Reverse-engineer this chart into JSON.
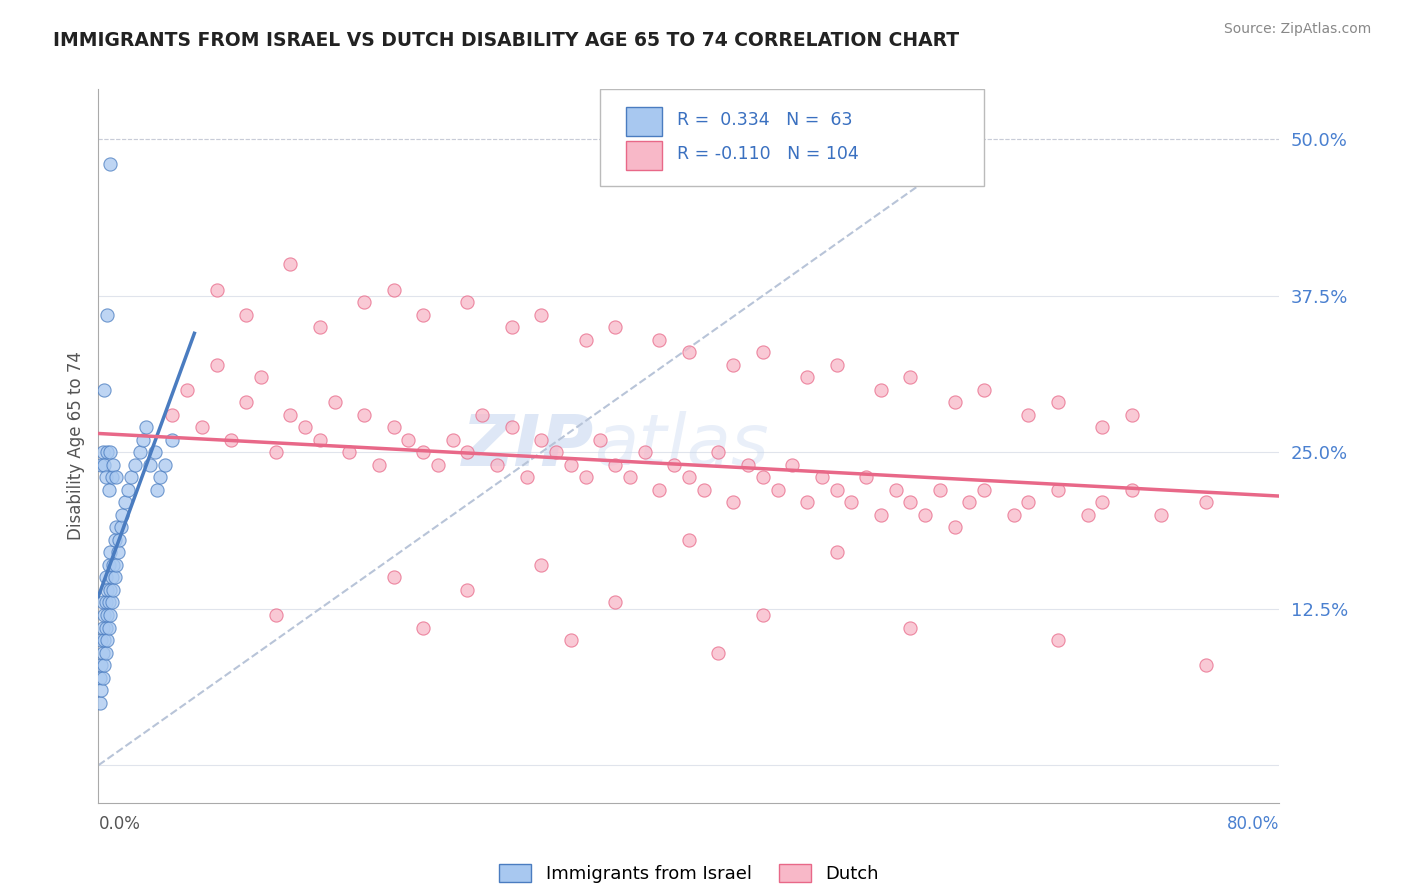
{
  "title": "IMMIGRANTS FROM ISRAEL VS DUTCH DISABILITY AGE 65 TO 74 CORRELATION CHART",
  "source": "Source: ZipAtlas.com",
  "ylabel": "Disability Age 65 to 74",
  "yticks": [
    0.0,
    0.125,
    0.25,
    0.375,
    0.5
  ],
  "ytick_labels": [
    "",
    "12.5%",
    "25.0%",
    "37.5%",
    "50.0%"
  ],
  "xmin": 0.0,
  "xmax": 0.8,
  "ymin": -0.03,
  "ymax": 0.54,
  "israel_R": 0.334,
  "israel_N": 63,
  "dutch_R": -0.11,
  "dutch_N": 104,
  "israel_color": "#a8c8f0",
  "dutch_color": "#f8b8c8",
  "israel_line_color": "#4a7cc0",
  "dutch_line_color": "#e86888",
  "trendline_dashed_color": "#b8c4d8",
  "watermark_color": "#c8d8f0",
  "background_color": "#ffffff",
  "title_color": "#222222",
  "grid_color": "#e0e4ec",
  "israel_scatter_x": [
    0.001,
    0.001,
    0.002,
    0.002,
    0.002,
    0.003,
    0.003,
    0.003,
    0.003,
    0.004,
    0.004,
    0.004,
    0.005,
    0.005,
    0.005,
    0.005,
    0.006,
    0.006,
    0.006,
    0.007,
    0.007,
    0.007,
    0.008,
    0.008,
    0.008,
    0.009,
    0.009,
    0.01,
    0.01,
    0.011,
    0.011,
    0.012,
    0.012,
    0.013,
    0.014,
    0.015,
    0.016,
    0.018,
    0.02,
    0.022,
    0.025,
    0.028,
    0.03,
    0.032,
    0.035,
    0.038,
    0.04,
    0.042,
    0.045,
    0.05,
    0.002,
    0.003,
    0.004,
    0.005,
    0.006,
    0.007,
    0.008,
    0.009,
    0.01,
    0.012,
    0.008,
    0.006,
    0.004
  ],
  "israel_scatter_y": [
    0.05,
    0.07,
    0.06,
    0.08,
    0.1,
    0.07,
    0.09,
    0.11,
    0.13,
    0.08,
    0.1,
    0.12,
    0.09,
    0.11,
    0.13,
    0.15,
    0.1,
    0.12,
    0.14,
    0.11,
    0.13,
    0.16,
    0.12,
    0.14,
    0.17,
    0.13,
    0.15,
    0.14,
    0.16,
    0.15,
    0.18,
    0.16,
    0.19,
    0.17,
    0.18,
    0.19,
    0.2,
    0.21,
    0.22,
    0.23,
    0.24,
    0.25,
    0.26,
    0.27,
    0.24,
    0.25,
    0.22,
    0.23,
    0.24,
    0.26,
    0.24,
    0.25,
    0.24,
    0.23,
    0.25,
    0.22,
    0.25,
    0.23,
    0.24,
    0.23,
    0.48,
    0.36,
    0.3
  ],
  "dutch_scatter_x": [
    0.05,
    0.06,
    0.07,
    0.08,
    0.09,
    0.1,
    0.11,
    0.12,
    0.13,
    0.14,
    0.15,
    0.16,
    0.17,
    0.18,
    0.19,
    0.2,
    0.21,
    0.22,
    0.23,
    0.24,
    0.25,
    0.26,
    0.27,
    0.28,
    0.29,
    0.3,
    0.31,
    0.32,
    0.33,
    0.34,
    0.35,
    0.36,
    0.37,
    0.38,
    0.39,
    0.4,
    0.41,
    0.42,
    0.43,
    0.44,
    0.45,
    0.46,
    0.47,
    0.48,
    0.49,
    0.5,
    0.51,
    0.52,
    0.53,
    0.54,
    0.55,
    0.56,
    0.57,
    0.58,
    0.59,
    0.6,
    0.62,
    0.63,
    0.65,
    0.67,
    0.68,
    0.7,
    0.72,
    0.75,
    0.08,
    0.1,
    0.13,
    0.15,
    0.18,
    0.2,
    0.22,
    0.25,
    0.28,
    0.3,
    0.33,
    0.35,
    0.38,
    0.4,
    0.43,
    0.45,
    0.48,
    0.5,
    0.53,
    0.55,
    0.58,
    0.6,
    0.63,
    0.65,
    0.68,
    0.7,
    0.4,
    0.5,
    0.3,
    0.2,
    0.25,
    0.35,
    0.45,
    0.55,
    0.65,
    0.75,
    0.12,
    0.22,
    0.32,
    0.42
  ],
  "dutch_scatter_y": [
    0.28,
    0.3,
    0.27,
    0.32,
    0.26,
    0.29,
    0.31,
    0.25,
    0.28,
    0.27,
    0.26,
    0.29,
    0.25,
    0.28,
    0.24,
    0.27,
    0.26,
    0.25,
    0.24,
    0.26,
    0.25,
    0.28,
    0.24,
    0.27,
    0.23,
    0.26,
    0.25,
    0.24,
    0.23,
    0.26,
    0.24,
    0.23,
    0.25,
    0.22,
    0.24,
    0.23,
    0.22,
    0.25,
    0.21,
    0.24,
    0.23,
    0.22,
    0.24,
    0.21,
    0.23,
    0.22,
    0.21,
    0.23,
    0.2,
    0.22,
    0.21,
    0.2,
    0.22,
    0.19,
    0.21,
    0.22,
    0.2,
    0.21,
    0.22,
    0.2,
    0.21,
    0.22,
    0.2,
    0.21,
    0.38,
    0.36,
    0.4,
    0.35,
    0.37,
    0.38,
    0.36,
    0.37,
    0.35,
    0.36,
    0.34,
    0.35,
    0.34,
    0.33,
    0.32,
    0.33,
    0.31,
    0.32,
    0.3,
    0.31,
    0.29,
    0.3,
    0.28,
    0.29,
    0.27,
    0.28,
    0.18,
    0.17,
    0.16,
    0.15,
    0.14,
    0.13,
    0.12,
    0.11,
    0.1,
    0.08,
    0.12,
    0.11,
    0.1,
    0.09
  ],
  "israel_trend_x0": 0.0,
  "israel_trend_x1": 0.065,
  "israel_trend_y0": 0.135,
  "israel_trend_y1": 0.345,
  "dutch_trend_x0": 0.0,
  "dutch_trend_x1": 0.8,
  "dutch_trend_y0": 0.265,
  "dutch_trend_y1": 0.215,
  "dashed_trend_x0": 0.0,
  "dashed_trend_x1": 0.6,
  "dashed_trend_y0": 0.0,
  "dashed_trend_y1": 0.5
}
